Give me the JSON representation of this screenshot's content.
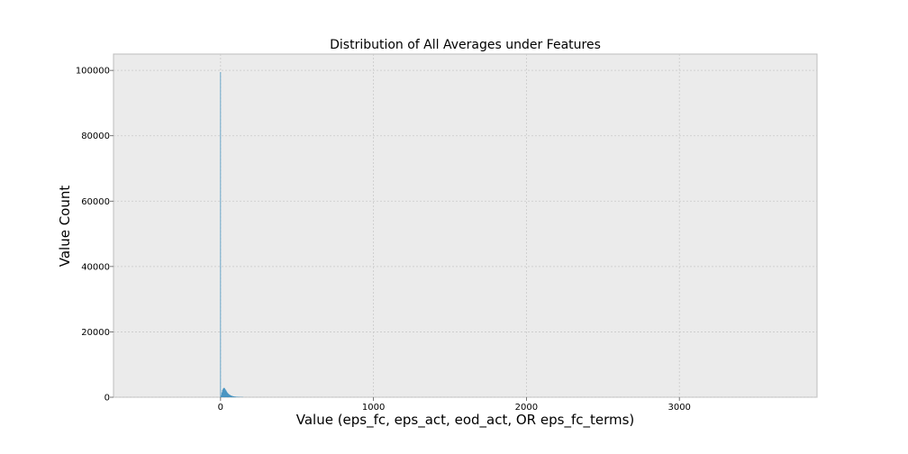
{
  "chart_data": {
    "type": "bar",
    "title": "Distribution of All Averages under Features",
    "xlabel": "Value (eps_fc, eps_act, eod_act, OR eps_fc_terms)",
    "ylabel": "Value Count",
    "xlim": [
      -700,
      3900
    ],
    "ylim": [
      0,
      105000
    ],
    "xticks": [
      0,
      1000,
      2000,
      3000
    ],
    "yticks": [
      0,
      20000,
      40000,
      60000,
      80000,
      100000
    ],
    "grid": true,
    "background": "#ebebeb",
    "bar_color": "#348abd",
    "bins": [
      {
        "x0": -2,
        "x1": 2,
        "count": 99500
      },
      {
        "x0": 2,
        "x1": 6,
        "count": 700
      },
      {
        "x0": 6,
        "x1": 10,
        "count": 1500
      },
      {
        "x0": 10,
        "x1": 14,
        "count": 2200
      },
      {
        "x0": 14,
        "x1": 18,
        "count": 2600
      },
      {
        "x0": 18,
        "x1": 22,
        "count": 2800
      },
      {
        "x0": 22,
        "x1": 26,
        "count": 2900
      },
      {
        "x0": 26,
        "x1": 30,
        "count": 2700
      },
      {
        "x0": 30,
        "x1": 34,
        "count": 2400
      },
      {
        "x0": 34,
        "x1": 38,
        "count": 2100
      },
      {
        "x0": 38,
        "x1": 42,
        "count": 1800
      },
      {
        "x0": 42,
        "x1": 46,
        "count": 1500
      },
      {
        "x0": 46,
        "x1": 50,
        "count": 1250
      },
      {
        "x0": 50,
        "x1": 54,
        "count": 1050
      },
      {
        "x0": 54,
        "x1": 58,
        "count": 900
      },
      {
        "x0": 58,
        "x1": 62,
        "count": 780
      },
      {
        "x0": 62,
        "x1": 66,
        "count": 660
      },
      {
        "x0": 66,
        "x1": 70,
        "count": 560
      },
      {
        "x0": 70,
        "x1": 74,
        "count": 470
      },
      {
        "x0": 74,
        "x1": 78,
        "count": 400
      },
      {
        "x0": 78,
        "x1": 82,
        "count": 340
      },
      {
        "x0": 82,
        "x1": 86,
        "count": 290
      },
      {
        "x0": 86,
        "x1": 90,
        "count": 250
      },
      {
        "x0": 90,
        "x1": 94,
        "count": 220
      },
      {
        "x0": 94,
        "x1": 98,
        "count": 190
      },
      {
        "x0": 98,
        "x1": 102,
        "count": 170
      },
      {
        "x0": 102,
        "x1": 106,
        "count": 150
      },
      {
        "x0": 106,
        "x1": 110,
        "count": 135
      },
      {
        "x0": 110,
        "x1": 114,
        "count": 120
      },
      {
        "x0": 114,
        "x1": 118,
        "count": 110
      },
      {
        "x0": 118,
        "x1": 122,
        "count": 100
      },
      {
        "x0": 122,
        "x1": 126,
        "count": 90
      },
      {
        "x0": 126,
        "x1": 130,
        "count": 80
      },
      {
        "x0": 130,
        "x1": 134,
        "count": 75
      },
      {
        "x0": 134,
        "x1": 138,
        "count": 70
      },
      {
        "x0": 138,
        "x1": 142,
        "count": 65
      },
      {
        "x0": 142,
        "x1": 146,
        "count": 55
      },
      {
        "x0": 146,
        "x1": 150,
        "count": 50
      }
    ]
  }
}
